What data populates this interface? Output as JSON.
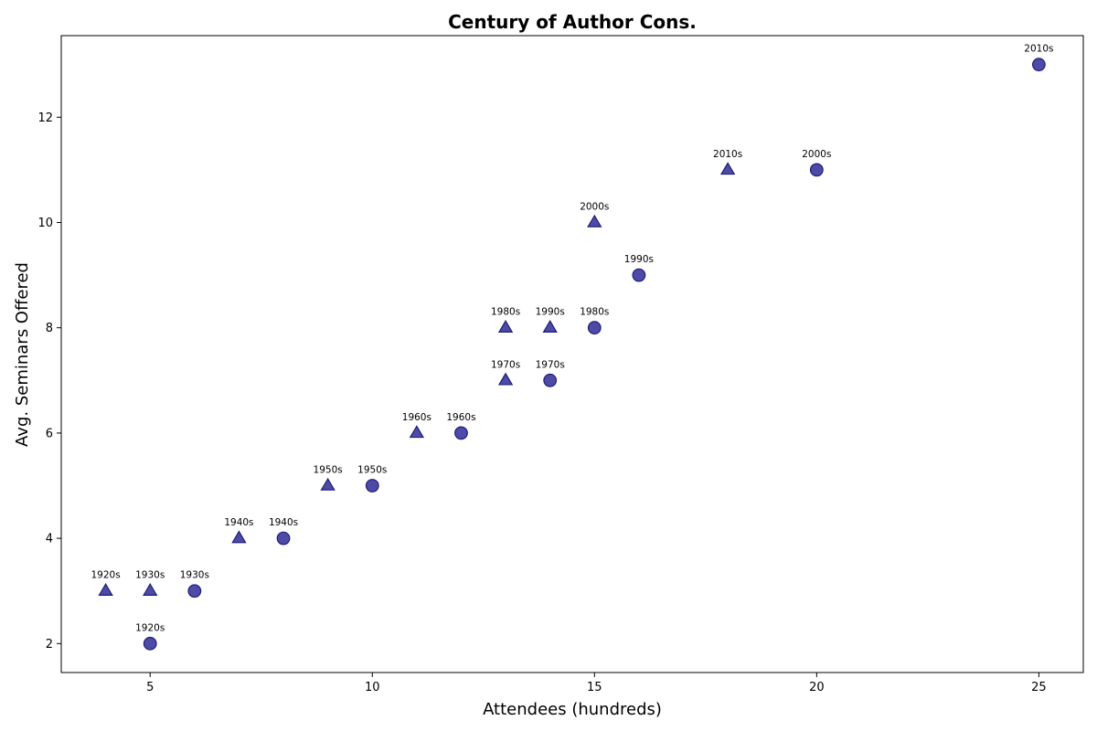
{
  "chart_data": {
    "type": "scatter",
    "title": "Century of Author Cons.",
    "xlabel": "Attendees (hundreds)",
    "ylabel": "Avg. Seminars Offered",
    "xlim": [
      3,
      26
    ],
    "ylim": [
      1.45,
      13.55
    ],
    "xticks": [
      5,
      10,
      15,
      20,
      25
    ],
    "yticks": [
      2,
      4,
      6,
      8,
      10,
      12
    ],
    "grid": false,
    "marker_color": "#2e2c96",
    "marker_edge_color": "#1f1d7a",
    "series": [
      {
        "marker": "circle",
        "points": [
          {
            "x": 5,
            "y": 2,
            "label": "1920s"
          },
          {
            "x": 6,
            "y": 3,
            "label": "1930s"
          },
          {
            "x": 8,
            "y": 4,
            "label": "1940s"
          },
          {
            "x": 10,
            "y": 5,
            "label": "1950s"
          },
          {
            "x": 12,
            "y": 6,
            "label": "1960s"
          },
          {
            "x": 14,
            "y": 7,
            "label": "1970s"
          },
          {
            "x": 15,
            "y": 8,
            "label": "1980s"
          },
          {
            "x": 16,
            "y": 9,
            "label": "1990s"
          },
          {
            "x": 20,
            "y": 11,
            "label": "2000s"
          },
          {
            "x": 25,
            "y": 13,
            "label": "2010s"
          }
        ]
      },
      {
        "marker": "triangle",
        "points": [
          {
            "x": 4,
            "y": 3,
            "label": "1920s"
          },
          {
            "x": 5,
            "y": 3,
            "label": "1930s"
          },
          {
            "x": 7,
            "y": 4,
            "label": "1940s"
          },
          {
            "x": 9,
            "y": 5,
            "label": "1950s"
          },
          {
            "x": 11,
            "y": 6,
            "label": "1960s"
          },
          {
            "x": 13,
            "y": 7,
            "label": "1970s"
          },
          {
            "x": 13,
            "y": 8,
            "label": "1980s"
          },
          {
            "x": 14,
            "y": 8,
            "label": "1990s"
          },
          {
            "x": 15,
            "y": 10,
            "label": "2000s"
          },
          {
            "x": 18,
            "y": 11,
            "label": "2010s"
          }
        ]
      }
    ]
  }
}
